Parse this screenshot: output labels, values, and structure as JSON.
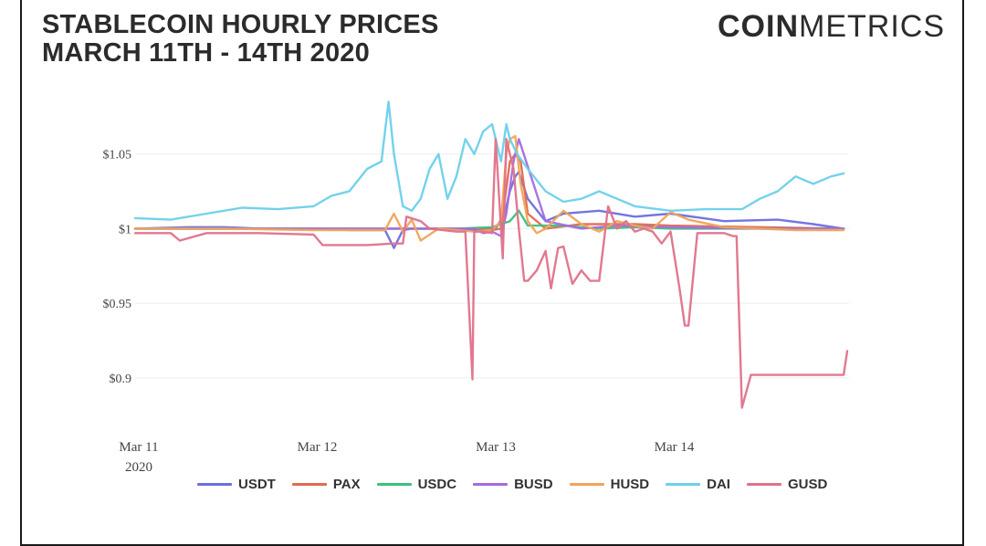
{
  "header": {
    "title_line1": "STABLECOIN HOURLY PRICES",
    "title_line2": "MARCH 11TH - 14TH 2020",
    "brand_bold": "COIN",
    "brand_light": "METRICS"
  },
  "chart_data": {
    "type": "line",
    "title": "Stablecoin Hourly Prices March 11th - 14th 2020",
    "xlabel": "",
    "ylabel": "",
    "xlim": [
      0,
      4
    ],
    "ylim": [
      0.873,
      1.092
    ],
    "x_ticks": [
      {
        "value": 0,
        "label": "Mar 11",
        "sublabel": "2020"
      },
      {
        "value": 1,
        "label": "Mar 12",
        "sublabel": ""
      },
      {
        "value": 2,
        "label": "Mar 13",
        "sublabel": ""
      },
      {
        "value": 3,
        "label": "Mar 14",
        "sublabel": ""
      }
    ],
    "y_ticks": [
      {
        "value": 0.9,
        "label": "$0.9"
      },
      {
        "value": 0.95,
        "label": "$0.95"
      },
      {
        "value": 1.0,
        "label": "$1"
      },
      {
        "value": 1.05,
        "label": "$1.05"
      }
    ],
    "grid": true,
    "legend_position": "bottom",
    "series": [
      {
        "name": "USDT",
        "color": "#6a6fdc",
        "x": [
          0,
          0.3,
          0.5,
          0.7,
          1.0,
          1.2,
          1.4,
          1.45,
          1.5,
          1.55,
          1.6,
          1.7,
          1.8,
          1.9,
          1.97,
          2.02,
          2.07,
          2.1,
          2.13,
          2.15,
          2.2,
          2.3,
          2.4,
          2.6,
          2.8,
          3.0,
          3.3,
          3.6,
          3.8,
          3.97
        ],
        "y": [
          1.0,
          1.001,
          1.001,
          1.0,
          1.0,
          0.999,
          0.999,
          0.987,
          0.999,
          1.0,
          1.0,
          1.0,
          1.0,
          0.999,
          1.0,
          1.0,
          1.01,
          1.025,
          1.035,
          1.038,
          1.02,
          1.005,
          1.01,
          1.012,
          1.008,
          1.01,
          1.005,
          1.006,
          1.003,
          1.0
        ]
      },
      {
        "name": "PAX",
        "color": "#e06b4f",
        "x": [
          0,
          0.5,
          1.0,
          1.5,
          1.9,
          2.0,
          2.05,
          2.1,
          2.13,
          2.16,
          2.2,
          2.3,
          2.5,
          2.8,
          3.0,
          3.5,
          3.97
        ],
        "y": [
          1.0,
          1.0,
          1.0,
          1.0,
          1.0,
          0.999,
          1.0,
          1.045,
          1.05,
          1.045,
          1.01,
          1.0,
          1.003,
          1.003,
          1.002,
          1.001,
          1.0
        ]
      },
      {
        "name": "USDC",
        "color": "#3dbf7e",
        "x": [
          0,
          0.5,
          1.0,
          1.5,
          1.8,
          2.0,
          2.1,
          2.15,
          2.2,
          2.4,
          2.6,
          2.8,
          3.0,
          3.5,
          3.97
        ],
        "y": [
          1.0,
          1.0,
          1.0,
          1.0,
          1.0,
          1.001,
          1.005,
          1.012,
          1.002,
          1.002,
          1.0,
          1.001,
          1.0,
          1.0,
          1.0
        ]
      },
      {
        "name": "BUSD",
        "color": "#a36be0",
        "x": [
          0,
          0.5,
          1.0,
          1.5,
          1.9,
          1.95,
          2.0,
          2.05,
          2.08,
          2.12,
          2.15,
          2.3,
          2.5,
          2.7,
          3.0,
          3.5,
          3.97
        ],
        "y": [
          1.0,
          1.0,
          1.0,
          1.0,
          1.0,
          0.997,
          0.998,
          0.995,
          1.01,
          1.045,
          1.06,
          1.005,
          1.0,
          1.002,
          1.001,
          1.0,
          1.0
        ]
      },
      {
        "name": "HUSD",
        "color": "#f1a35a",
        "x": [
          0,
          0.5,
          1.0,
          1.4,
          1.45,
          1.5,
          1.55,
          1.6,
          1.7,
          1.8,
          1.9,
          2.0,
          2.05,
          2.08,
          2.1,
          2.13,
          2.16,
          2.2,
          2.25,
          2.3,
          2.4,
          2.5,
          2.6,
          2.7,
          2.8,
          2.9,
          3.0,
          3.1,
          3.3,
          3.5,
          3.7,
          3.97
        ],
        "y": [
          1.0,
          1.0,
          0.999,
          0.999,
          1.01,
          0.998,
          1.006,
          0.992,
          1.0,
          0.999,
          0.998,
          0.999,
          1.005,
          1.05,
          1.06,
          1.062,
          1.03,
          1.005,
          0.997,
          1.0,
          1.012,
          1.003,
          0.998,
          1.005,
          1.002,
          1.0,
          1.011,
          1.006,
          1.001,
          1.0,
          0.999,
          0.999
        ]
      },
      {
        "name": "DAI",
        "color": "#6cd0ea",
        "x": [
          0,
          0.2,
          0.4,
          0.6,
          0.8,
          1.0,
          1.1,
          1.2,
          1.3,
          1.38,
          1.42,
          1.45,
          1.5,
          1.55,
          1.6,
          1.65,
          1.7,
          1.75,
          1.8,
          1.85,
          1.9,
          1.95,
          2.0,
          2.05,
          2.08,
          2.1,
          2.14,
          2.2,
          2.3,
          2.4,
          2.5,
          2.6,
          2.7,
          2.8,
          3.0,
          3.2,
          3.4,
          3.5,
          3.6,
          3.7,
          3.8,
          3.9,
          3.97
        ],
        "y": [
          1.007,
          1.006,
          1.01,
          1.014,
          1.013,
          1.015,
          1.022,
          1.025,
          1.04,
          1.045,
          1.085,
          1.05,
          1.015,
          1.012,
          1.02,
          1.04,
          1.05,
          1.02,
          1.035,
          1.06,
          1.05,
          1.065,
          1.07,
          1.045,
          1.07,
          1.06,
          1.05,
          1.04,
          1.025,
          1.018,
          1.02,
          1.025,
          1.02,
          1.015,
          1.012,
          1.013,
          1.013,
          1.02,
          1.025,
          1.035,
          1.03,
          1.035,
          1.037
        ]
      },
      {
        "name": "GUSD",
        "color": "#e0718a",
        "x": [
          0,
          0.2,
          0.25,
          0.4,
          0.7,
          1.0,
          1.05,
          1.3,
          1.45,
          1.5,
          1.52,
          1.6,
          1.65,
          1.8,
          1.85,
          1.89,
          1.9,
          1.95,
          2.0,
          2.02,
          2.06,
          2.08,
          2.1,
          2.12,
          2.15,
          2.18,
          2.2,
          2.25,
          2.3,
          2.33,
          2.37,
          2.4,
          2.45,
          2.5,
          2.55,
          2.6,
          2.65,
          2.7,
          2.75,
          2.8,
          2.85,
          2.9,
          2.95,
          3.0,
          3.05,
          3.08,
          3.1,
          3.15,
          3.2,
          3.3,
          3.35,
          3.37,
          3.4,
          3.45,
          3.5,
          3.6,
          3.97,
          3.99
        ],
        "y": [
          0.997,
          0.997,
          0.992,
          0.997,
          0.997,
          0.996,
          0.989,
          0.989,
          0.99,
          0.99,
          1.008,
          1.005,
          1.0,
          0.998,
          0.998,
          0.899,
          0.998,
          0.998,
          0.997,
          1.06,
          0.98,
          1.06,
          1.05,
          1.04,
          1.0,
          0.965,
          0.965,
          0.972,
          0.985,
          0.96,
          0.987,
          0.988,
          0.963,
          0.972,
          0.965,
          0.965,
          1.015,
          1.0,
          1.005,
          0.998,
          1.0,
          0.998,
          0.99,
          0.998,
          0.96,
          0.935,
          0.935,
          0.997,
          0.997,
          0.997,
          0.995,
          0.995,
          0.88,
          0.902,
          0.902,
          0.902,
          0.902,
          0.918
        ]
      }
    ]
  }
}
